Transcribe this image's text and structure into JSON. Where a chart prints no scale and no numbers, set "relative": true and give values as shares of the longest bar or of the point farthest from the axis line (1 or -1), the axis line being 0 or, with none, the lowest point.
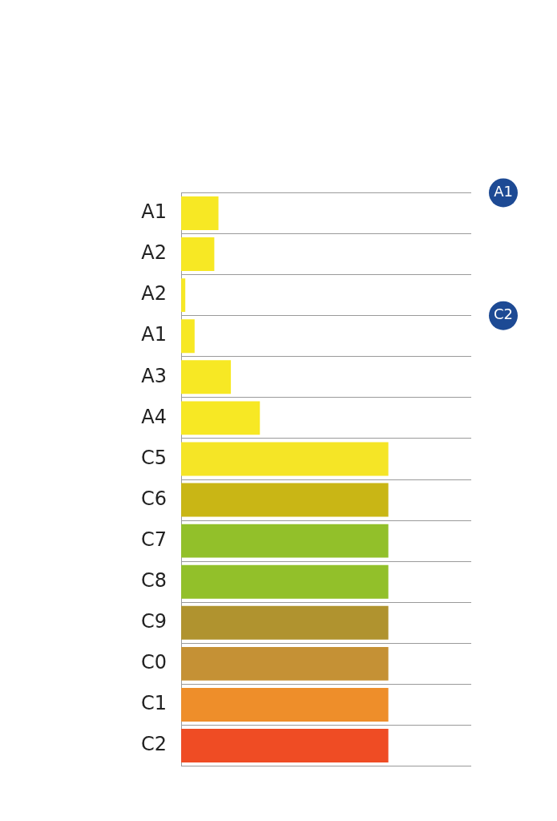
{
  "chart_data": {
    "type": "bar",
    "orientation": "horizontal",
    "relative": true,
    "grid": "y",
    "categories": [
      "A1",
      "A2",
      "A2",
      "A1",
      "A3",
      "A4",
      "C5",
      "C6",
      "C7",
      "C8",
      "C9",
      "C0",
      "C1",
      "C2"
    ],
    "values": [
      0.18,
      0.16,
      0.02,
      0.065,
      0.24,
      0.38,
      1,
      1,
      1,
      1,
      1,
      1,
      1,
      1
    ],
    "colors": [
      "#f7e824",
      "#f7e824",
      "#f7e824",
      "#f7e824",
      "#f7e824",
      "#f7e824",
      "#f5e526",
      "#c9b615",
      "#92c02a",
      "#92c02a",
      "#b0932f",
      "#c59135",
      "#ee8e2a",
      "#ef4c24"
    ],
    "annotations": [
      "A1",
      "C2"
    ]
  }
}
